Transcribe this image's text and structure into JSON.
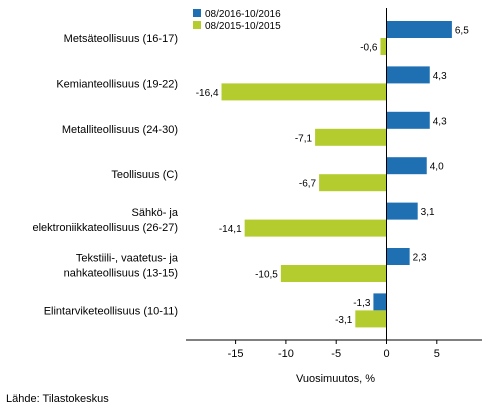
{
  "chart_data": {
    "type": "bar",
    "orientation": "horizontal",
    "categories": [
      [
        "Metsäteollisuus (16-17)"
      ],
      [
        "Kemianteollisuus (19-22)"
      ],
      [
        "Metalliteollisuus (24-30)"
      ],
      [
        "Teollisuus (C)"
      ],
      [
        "Sähkö- ja",
        "elektroniikkateollisuus (26-27)"
      ],
      [
        "Tekstiili-, vaatetus- ja",
        "nahkateollisuus (13-15)"
      ],
      [
        "Elintarviketeollisuus (10-11)"
      ]
    ],
    "series": [
      {
        "name": "08/2016-10/2016",
        "color": "#1f6fb3",
        "values": [
          6.5,
          4.3,
          4.3,
          4.0,
          3.1,
          2.3,
          -1.3
        ],
        "labels": [
          "6,5",
          "4,3",
          "4,3",
          "4,0",
          "3,1",
          "2,3",
          "-1,3"
        ]
      },
      {
        "name": "08/2015-10/2015",
        "color": "#b5cc2e",
        "values": [
          -0.6,
          -16.4,
          -7.1,
          -6.7,
          -14.1,
          -10.5,
          -3.1
        ],
        "labels": [
          "-0,6",
          "-16,4",
          "-7,1",
          "-6,7",
          "-14,1",
          "-10,5",
          "-3,1"
        ]
      }
    ],
    "xlim": [
      -20,
      10
    ],
    "xticks": [
      -15,
      -10,
      -5,
      0,
      5
    ],
    "xtick_labels": [
      "-15",
      "-10",
      "-5",
      "0",
      "5"
    ],
    "xlabel": "Vuosimuutos, %",
    "legend_position": "top-left",
    "grid": false
  },
  "source": "Lähde: Tilastokeskus"
}
